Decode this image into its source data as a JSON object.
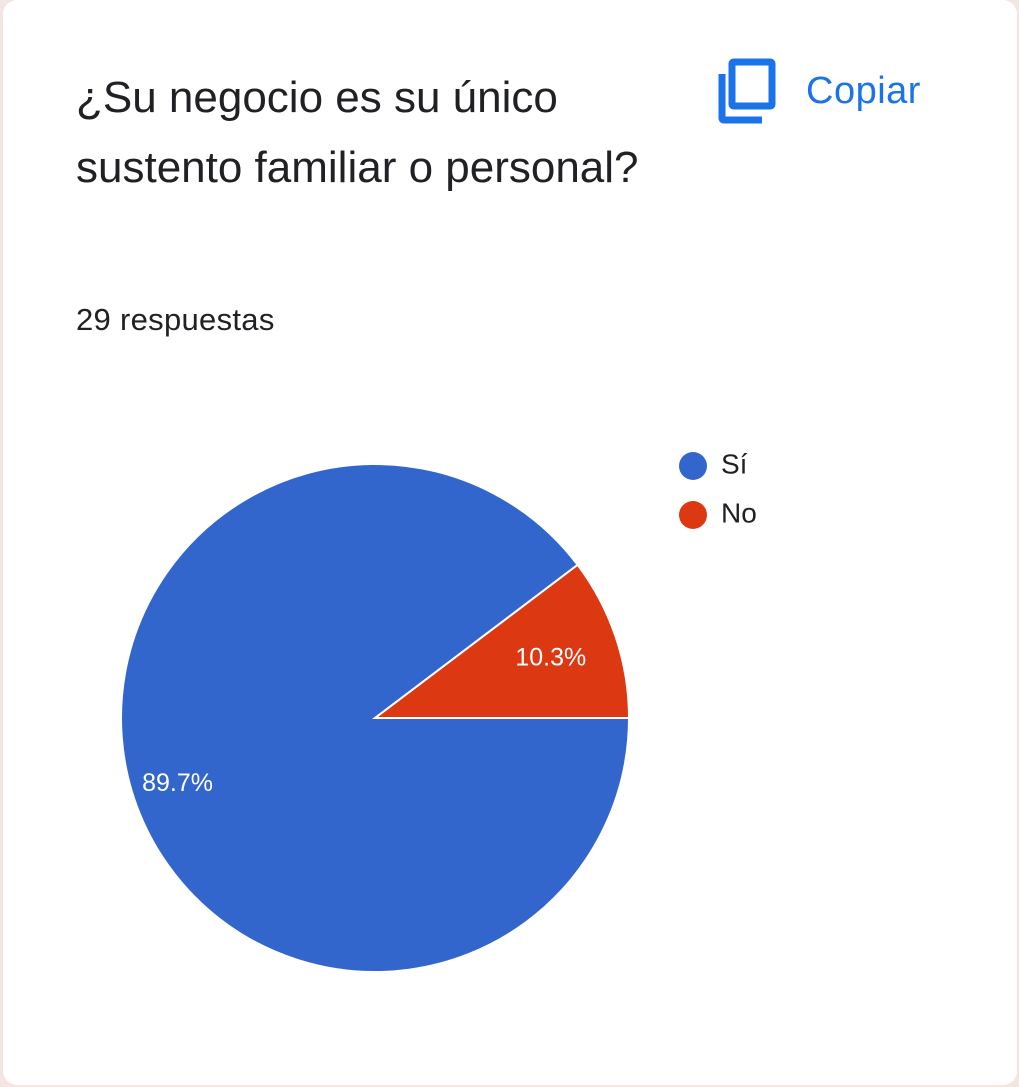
{
  "card": {
    "title": "¿Su negocio es su único sustento familiar o personal?",
    "responses": "29 respuestas",
    "copy_label": "Copiar",
    "copy_icon": "copy-icon",
    "accent_color": "#1a73e8"
  },
  "chart_data": {
    "type": "pie",
    "categories": [
      "Sí",
      "No"
    ],
    "values": [
      89.7,
      10.3
    ],
    "data_labels": [
      "89.7%",
      "10.3%"
    ],
    "colors": [
      "#3366cc",
      "#dc3912"
    ],
    "legend_position": "right"
  }
}
